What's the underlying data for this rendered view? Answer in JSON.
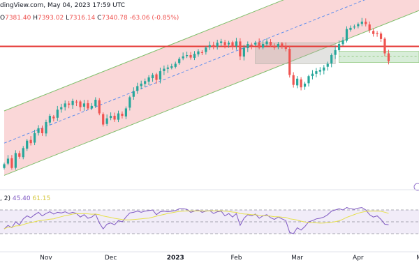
{
  "header": {
    "source_text": "dingView.com, May 04, 2023 17:59 UTC"
  },
  "ohlc": {
    "o_label": "O",
    "o_value": "7381.40",
    "h_label": "H",
    "h_value": "7393.02",
    "l_label": "L",
    "l_value": "7316.14",
    "c_label": "C",
    "c_value": "7340.78",
    "change": "-63.06 (-0.85%)"
  },
  "rsi_legend": {
    "params": ", 2)",
    "rsi_value": "45.40",
    "ma_value": "61.15"
  },
  "colors": {
    "up": "#26a69a",
    "down": "#ef5350",
    "channel_fill": "#f8c9cb",
    "channel_line": "#7fbf6a",
    "midline": "#5b8def",
    "horizontal_line": "#e53935",
    "box_green": "#c8e6c9",
    "box_gray": "#b0b0a8",
    "rsi_line": "#7e57c2",
    "rsi_ma": "#e6e04a",
    "rsi_band": "#ede7f6"
  },
  "chart_data": {
    "type": "candlestick",
    "price_panel": {
      "note_values": "approximate daily closes, index points",
      "closes": [
        6510,
        6555,
        6480,
        6600,
        6570,
        6640,
        6700,
        6680,
        6760,
        6800,
        6760,
        6850,
        6900,
        6880,
        6950,
        6970,
        7000,
        6990,
        7020,
        7010,
        6970,
        7000,
        6960,
        6980,
        7030,
        6920,
        6830,
        6880,
        6900,
        6870,
        6920,
        6900,
        6960,
        7050,
        7100,
        7140,
        7160,
        7180,
        7210,
        7230,
        7190,
        7260,
        7280,
        7290,
        7300,
        7320,
        7360,
        7380,
        7390,
        7370,
        7400,
        7420,
        7410,
        7450,
        7470,
        7460,
        7490,
        7500,
        7470,
        7490,
        7460,
        7500,
        7380,
        7450,
        7480,
        7470,
        7490,
        7450,
        7480,
        7500,
        7470,
        7450,
        7480,
        7460,
        7440,
        7230,
        7150,
        7200,
        7130,
        7160,
        7220,
        7240,
        7260,
        7270,
        7290,
        7320,
        7390,
        7430,
        7480,
        7510,
        7600,
        7610,
        7620,
        7640,
        7660,
        7640,
        7590,
        7560,
        7560,
        7520,
        7404,
        7340
      ],
      "current_close": 7340.78,
      "horizontal_level": 7460,
      "channel": {
        "lower_start": 6420,
        "upper_start": 6940,
        "slope_per_bar": 12.2
      }
    },
    "rsi_panel": {
      "levels": [
        70,
        50,
        30
      ],
      "rsi": [
        38,
        44,
        40,
        50,
        45,
        55,
        60,
        57,
        62,
        66,
        60,
        64,
        67,
        63,
        66,
        65,
        67,
        64,
        66,
        64,
        58,
        62,
        56,
        58,
        63,
        48,
        38,
        46,
        48,
        45,
        52,
        50,
        58,
        65,
        66,
        68,
        66,
        68,
        69,
        70,
        62,
        67,
        68,
        67,
        68,
        69,
        72,
        72,
        71,
        66,
        68,
        70,
        66,
        68,
        69,
        64,
        67,
        68,
        60,
        64,
        58,
        64,
        44,
        56,
        62,
        60,
        63,
        56,
        60,
        62,
        57,
        54,
        58,
        55,
        52,
        32,
        30,
        40,
        36,
        42,
        50,
        52,
        55,
        56,
        58,
        62,
        68,
        70,
        72,
        70,
        74,
        72,
        71,
        73,
        74,
        70,
        62,
        58,
        60,
        54,
        46,
        45
      ],
      "last_rsi": 45.4,
      "last_ma": 61.15
    },
    "x_axis": {
      "tick_labels": [
        "Nov",
        "Dec",
        "2023",
        "Feb",
        "Mar",
        "Apr",
        "May"
      ],
      "tick_bar_index": [
        11,
        28,
        45,
        61,
        77,
        93,
        110
      ]
    }
  }
}
